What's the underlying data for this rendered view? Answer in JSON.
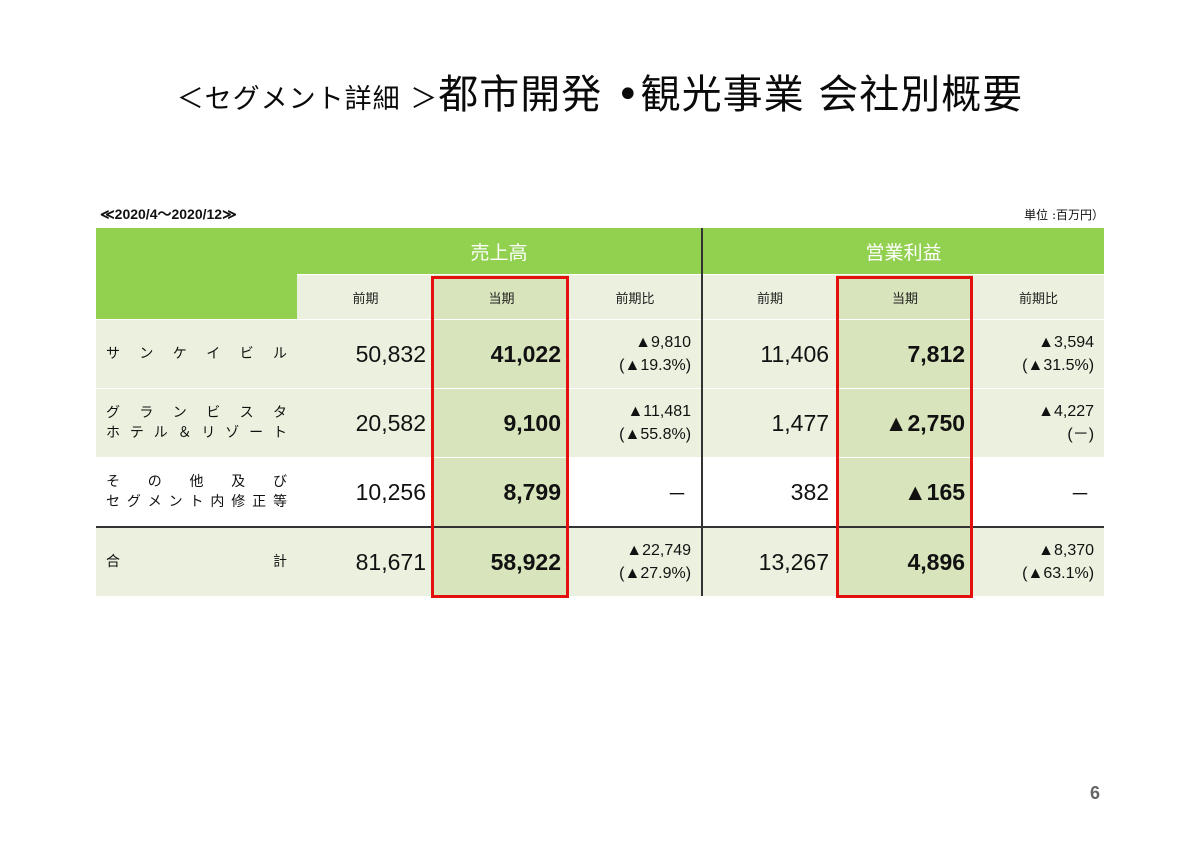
{
  "title_prefix": "＜セグメント詳細 ＞",
  "title_main": "都市開発 •観光事業 会社別概要",
  "period": "≪2020/4～2020/12≫",
  "unit": "単位 :百万円）",
  "groups": {
    "sales": "売上高",
    "op_income": "営業利益"
  },
  "subheaders": {
    "prev": "前期",
    "cur": "当期",
    "ratio": "前期比"
  },
  "rows": [
    {
      "label_lines": [
        "サ ン ケ イ ビ ル"
      ],
      "sales_prev": "50,832",
      "sales_cur": "41,022",
      "sales_ratio_1": "▲9,810",
      "sales_ratio_2": "(▲19.3%)",
      "op_prev": "11,406",
      "op_cur": "7,812",
      "op_ratio_1": "▲3,594",
      "op_ratio_2": "(▲31.5%)"
    },
    {
      "label_lines": [
        "グ ラ ン ビ ス タ",
        "ホ テ ル ＆ リ ゾ ー ト"
      ],
      "sales_prev": "20,582",
      "sales_cur": "9,100",
      "sales_ratio_1": "▲11,481",
      "sales_ratio_2": "(▲55.8%)",
      "op_prev": "1,477",
      "op_cur": "▲2,750",
      "op_ratio_1": "▲4,227",
      "op_ratio_2": "(－)"
    },
    {
      "label_lines": [
        "そ の 他 及 び",
        "セ グ メ ン ト 内 修 正 等"
      ],
      "sales_prev": "10,256",
      "sales_cur": "8,799",
      "sales_ratio_1": "－",
      "op_prev": "382",
      "op_cur": "▲165",
      "op_ratio_1": "－"
    },
    {
      "label_lines": [
        "合 計"
      ],
      "sales_prev": "81,671",
      "sales_cur": "58,922",
      "sales_ratio_1": "▲22,749",
      "sales_ratio_2": "(▲27.9%)",
      "op_prev": "13,267",
      "op_cur": "4,896",
      "op_ratio_1": "▲8,370",
      "op_ratio_2": "(▲63.1%)"
    }
  ],
  "page_number": "6",
  "colors": {
    "header_green": "#92d050",
    "light_green": "#ebf1de",
    "highlight_green": "#d8e4bc",
    "red_box": "#e3100f"
  }
}
